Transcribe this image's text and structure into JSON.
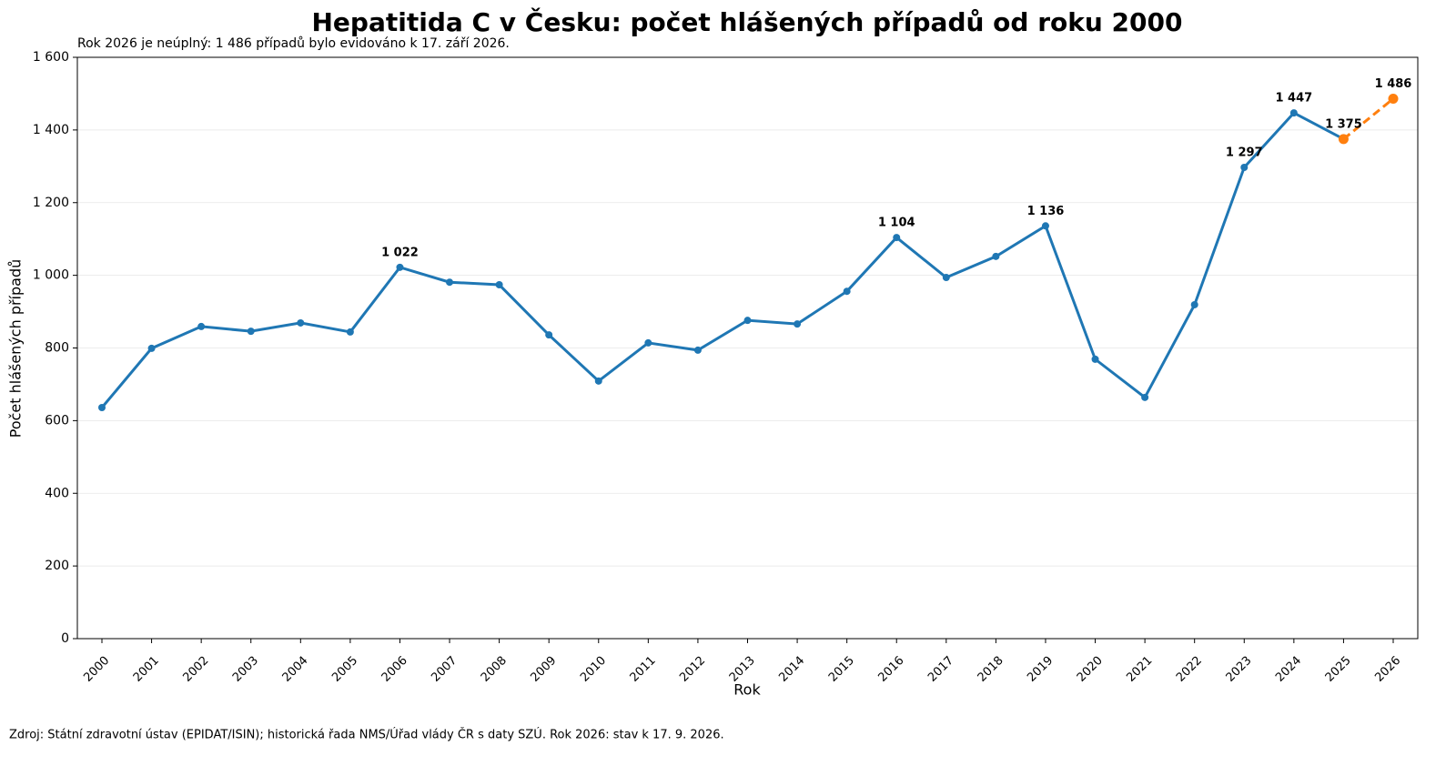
{
  "chart_data": {
    "type": "line",
    "title": "Hepatitida C v Česku: počet hlášených případů od roku 2000",
    "subtitle": "Rok 2026 je neúplný: 1 486 případů bylo evidováno k 17. září 2026.",
    "x_label": "Rok",
    "y_label": "Počet hlášených případů",
    "source": "Zdroj: Státní zdravotní ústav (EPIDAT/ISIN); historická řada NMS/Úřad vlády ČR s daty SZÚ. Rok 2026: stav k 17. 9. 2026.",
    "categories": [
      "2000",
      "2001",
      "2002",
      "2003",
      "2004",
      "2005",
      "2006",
      "2007",
      "2008",
      "2009",
      "2010",
      "2011",
      "2012",
      "2013",
      "2014",
      "2015",
      "2016",
      "2017",
      "2018",
      "2019",
      "2020",
      "2021",
      "2022",
      "2023",
      "2024",
      "2025",
      "2026"
    ],
    "series": [
      {
        "color": "#1f77b4",
        "dashed": false,
        "values": [
          636,
          799,
          859,
          846,
          869,
          844,
          1022,
          981,
          974,
          836,
          709,
          814,
          794,
          876,
          866,
          956,
          1104,
          994,
          1052,
          1136,
          769,
          664,
          919,
          1297,
          1447,
          1375,
          null
        ],
        "value_labels": [
          null,
          null,
          null,
          null,
          null,
          null,
          "1 022",
          null,
          null,
          null,
          null,
          null,
          null,
          null,
          null,
          null,
          "1 104",
          null,
          null,
          "1 136",
          null,
          null,
          null,
          "1 297",
          "1 447",
          null,
          null
        ]
      },
      {
        "color": "#ff7f0e",
        "dashed": true,
        "values": [
          null,
          null,
          null,
          null,
          null,
          null,
          null,
          null,
          null,
          null,
          null,
          null,
          null,
          null,
          null,
          null,
          null,
          null,
          null,
          null,
          null,
          null,
          null,
          null,
          null,
          1375,
          1486
        ],
        "value_labels": [
          null,
          null,
          null,
          null,
          null,
          null,
          null,
          null,
          null,
          null,
          null,
          null,
          null,
          null,
          null,
          null,
          null,
          null,
          null,
          null,
          null,
          null,
          null,
          null,
          null,
          "1 375",
          "1 486"
        ]
      }
    ],
    "ylim": [
      0,
      1600
    ],
    "yticks": [
      0,
      200,
      400,
      600,
      800,
      {
        "value": 1000,
        "label": "1 000"
      },
      {
        "value": 1200,
        "label": "1 200"
      },
      {
        "value": 1400,
        "label": "1 400"
      },
      {
        "value": 1600,
        "label": "1 600"
      }
    ],
    "grid": true
  }
}
